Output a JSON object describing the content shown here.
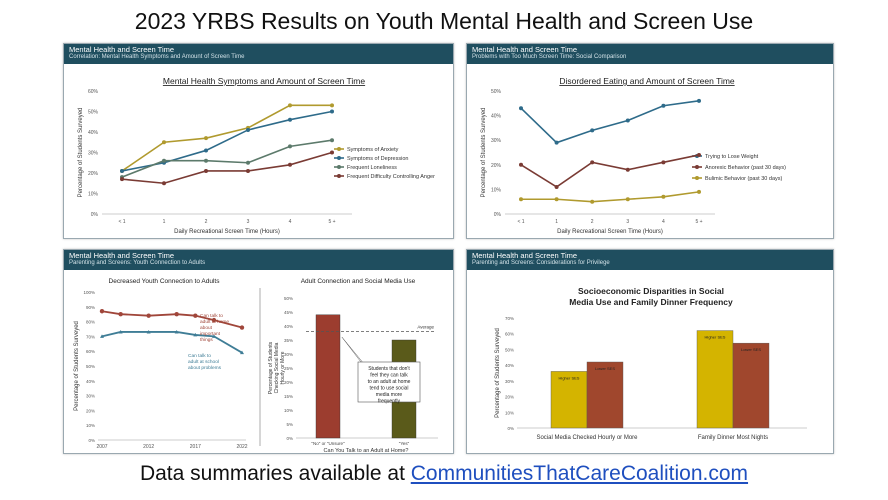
{
  "page": {
    "title": "2023 YRBS Results on Youth Mental Health and Screen Use",
    "footer_prefix": "Data summaries available at ",
    "footer_link": "CommunitiesThatCareCoalition.com"
  },
  "panels": {
    "p1": {
      "header": "Mental Health and Screen Time",
      "subheader": "Correlation: Mental Health Symptoms and Amount of Screen Time"
    },
    "p2": {
      "header": "Mental Health and Screen Time",
      "subheader": "Problems with Too Much Screen Time: Social Comparison"
    },
    "p3": {
      "header": "Mental Health and Screen Time",
      "subheader": "Parenting and Screens: Youth Connection to Adults"
    },
    "p4": {
      "header": "Mental Health and Screen Time",
      "subheader": "Parenting and Screens: Considerations for Privilege"
    }
  },
  "chart_data": [
    {
      "id": "c1",
      "type": "line",
      "title": "Mental Health Symptoms and Amount of Screen Time",
      "xlabel": "Daily Recreational Screen Time (Hours)",
      "ylabel": "Percentage of Students Surveyed",
      "categories": [
        "< 1",
        "1",
        "2",
        "3",
        "4",
        "5 +"
      ],
      "ylim": [
        0,
        60
      ],
      "yticks": [
        0,
        10,
        20,
        30,
        40,
        50,
        60
      ],
      "ytick_labels": [
        "0%",
        "10%",
        "20%",
        "30%",
        "40%",
        "50%",
        "60%"
      ],
      "legend_position": "right",
      "series": [
        {
          "name": "Symptoms of Anxiety",
          "color": "#b09a2e",
          "values": [
            21,
            35,
            37,
            42,
            53,
            53
          ]
        },
        {
          "name": "Symptoms of Depression",
          "color": "#2e6b8a",
          "values": [
            21,
            25,
            31,
            41,
            46,
            50
          ]
        },
        {
          "name": "Frequent Loneliness",
          "color": "#5c7a6b",
          "values": [
            18,
            26,
            26,
            25,
            33,
            36
          ]
        },
        {
          "name": "Frequent Difficulty Controlling Anger",
          "color": "#7a3b34",
          "values": [
            17,
            15,
            21,
            21,
            24,
            30
          ]
        }
      ]
    },
    {
      "id": "c2",
      "type": "line",
      "title": "Disordered Eating and Amount of Screen Time",
      "xlabel": "Daily Recreational Screen Time (Hours)",
      "ylabel": "Percentage of Students Surveyed",
      "categories": [
        "< 1",
        "1",
        "2",
        "3",
        "4",
        "5 +"
      ],
      "ylim": [
        0,
        50
      ],
      "yticks": [
        0,
        10,
        20,
        30,
        40,
        50
      ],
      "ytick_labels": [
        "0%",
        "10%",
        "20%",
        "30%",
        "40%",
        "50%"
      ],
      "legend_position": "right",
      "series": [
        {
          "name": "Trying to Lose Weight",
          "color": "#2e6b8a",
          "values": [
            43,
            29,
            34,
            38,
            44,
            46
          ]
        },
        {
          "name": "Anorexic Behavior (past 30 days)",
          "color": "#7a3b34",
          "values": [
            20,
            11,
            21,
            18,
            21,
            24
          ]
        },
        {
          "name": "Bulimic Behavior (past 30 days)",
          "color": "#b09a2e",
          "values": [
            6,
            6,
            5,
            6,
            7,
            9
          ]
        }
      ]
    },
    {
      "id": "c3",
      "type": "line",
      "title": "Decreased Youth Connection to Adults",
      "ylabel": "Percentage of Students Surveyed",
      "categories": [
        "2007",
        "2012",
        "2017",
        "2022"
      ],
      "x": [
        2007,
        2009,
        2012,
        2015,
        2017,
        2019,
        2022
      ],
      "ylim": [
        0,
        100
      ],
      "yticks": [
        0,
        10,
        20,
        30,
        40,
        50,
        60,
        70,
        80,
        90,
        100
      ],
      "ytick_labels": [
        "0%",
        "10%",
        "20%",
        "30%",
        "40%",
        "50%",
        "60%",
        "70%",
        "80%",
        "90%",
        "100%"
      ],
      "series": [
        {
          "name": "Can talk to adult at home about important things",
          "color": "#a0463a",
          "values": [
            87,
            85,
            84,
            85,
            84,
            81,
            76
          ]
        },
        {
          "name": "Can talk to adult at school about problems",
          "color": "#3f7d96",
          "values": [
            70,
            73,
            73,
            73,
            71,
            70,
            59
          ]
        }
      ],
      "annotations": [
        "Can talk to adult at home about important things",
        "Can talk to adult at school about problems"
      ]
    },
    {
      "id": "c4",
      "type": "bar",
      "title": "Adult Connection and Social Media Use",
      "xlabel": "Can You Talk to an Adult at Home?",
      "ylabel": "Percentage of Students Checking Social Media Hourly or More",
      "categories": [
        "\"No\" or \"Unsure\"",
        "\"Yes\""
      ],
      "values": [
        44,
        35
      ],
      "colors": [
        "#9c3d2f",
        "#5a5a1a"
      ],
      "ylim": [
        0,
        50
      ],
      "yticks": [
        0,
        5,
        10,
        15,
        20,
        25,
        30,
        35,
        40,
        45,
        50
      ],
      "ytick_labels": [
        "0%",
        "5%",
        "10%",
        "15%",
        "20%",
        "25%",
        "30%",
        "35%",
        "40%",
        "45%",
        "50%"
      ],
      "reference_line": {
        "value": 38,
        "label": "Average"
      },
      "callout": "Students that don't feel they can talk to an adult at home tend to use social media more frequently"
    },
    {
      "id": "c5",
      "type": "bar",
      "title": "Socioeconomic Disparities in Social Media Use and Family Dinner Frequency",
      "ylabel": "Percentage of Students Surveyed",
      "categories": [
        "Social Media Checked Hourly or More",
        "Family Dinner Most Nights"
      ],
      "ylim": [
        0,
        70
      ],
      "yticks": [
        0,
        10,
        20,
        30,
        40,
        50,
        60,
        70
      ],
      "ytick_labels": [
        "0%",
        "10%",
        "20%",
        "30%",
        "40%",
        "50%",
        "60%",
        "70%"
      ],
      "series": [
        {
          "name": "Higher SES",
          "color": "#d4b400",
          "values": [
            36,
            62
          ]
        },
        {
          "name": "Lower SES",
          "color": "#a0472d",
          "values": [
            42,
            54
          ]
        }
      ]
    }
  ]
}
